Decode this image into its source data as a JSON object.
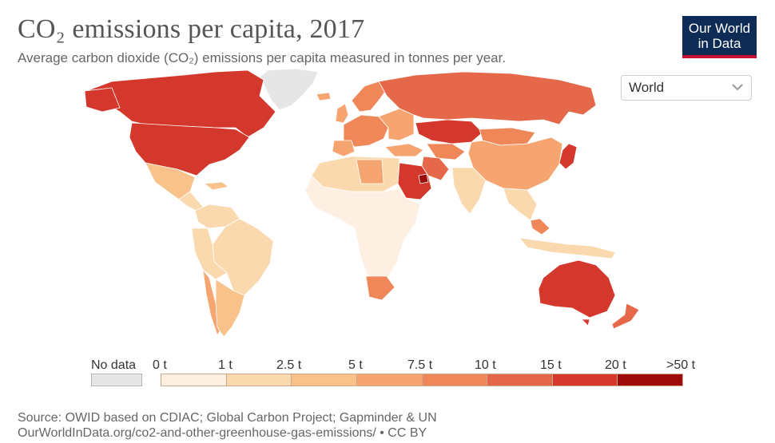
{
  "header": {
    "title": "CO₂ emissions per capita, 2017",
    "subtitle": "Average carbon dioxide (CO₂) emissions per capita measured in tonnes per year."
  },
  "logo": {
    "line1": "Our World",
    "line2": "in Data"
  },
  "region_selector": {
    "selected": "World",
    "icon": "chevron-down-icon"
  },
  "legend": {
    "no_data_label": "No data",
    "no_data_color": "#e6e6e6",
    "bins": [
      {
        "label": "0 t",
        "color": "#fdf0e2"
      },
      {
        "label": "1 t",
        "color": "#fbd9ae"
      },
      {
        "label": "2.5 t",
        "color": "#f9c28a"
      },
      {
        "label": "5 t",
        "color": "#f6a571"
      },
      {
        "label": "7.5 t",
        "color": "#ef8759"
      },
      {
        "label": "10 t",
        "color": "#e5684a"
      },
      {
        "label": "15 t",
        "color": "#d4372b"
      },
      {
        "label": "20 t",
        "color": "#9d0b0b"
      }
    ],
    "last_label": ">50 t"
  },
  "source": {
    "line1": "Source: OWID based on CDIAC; Global Carbon Project; Gapminder & UN",
    "line2": "OurWorldInData.org/co2-and-other-greenhouse-gas-emissions/ • CC BY"
  }
}
